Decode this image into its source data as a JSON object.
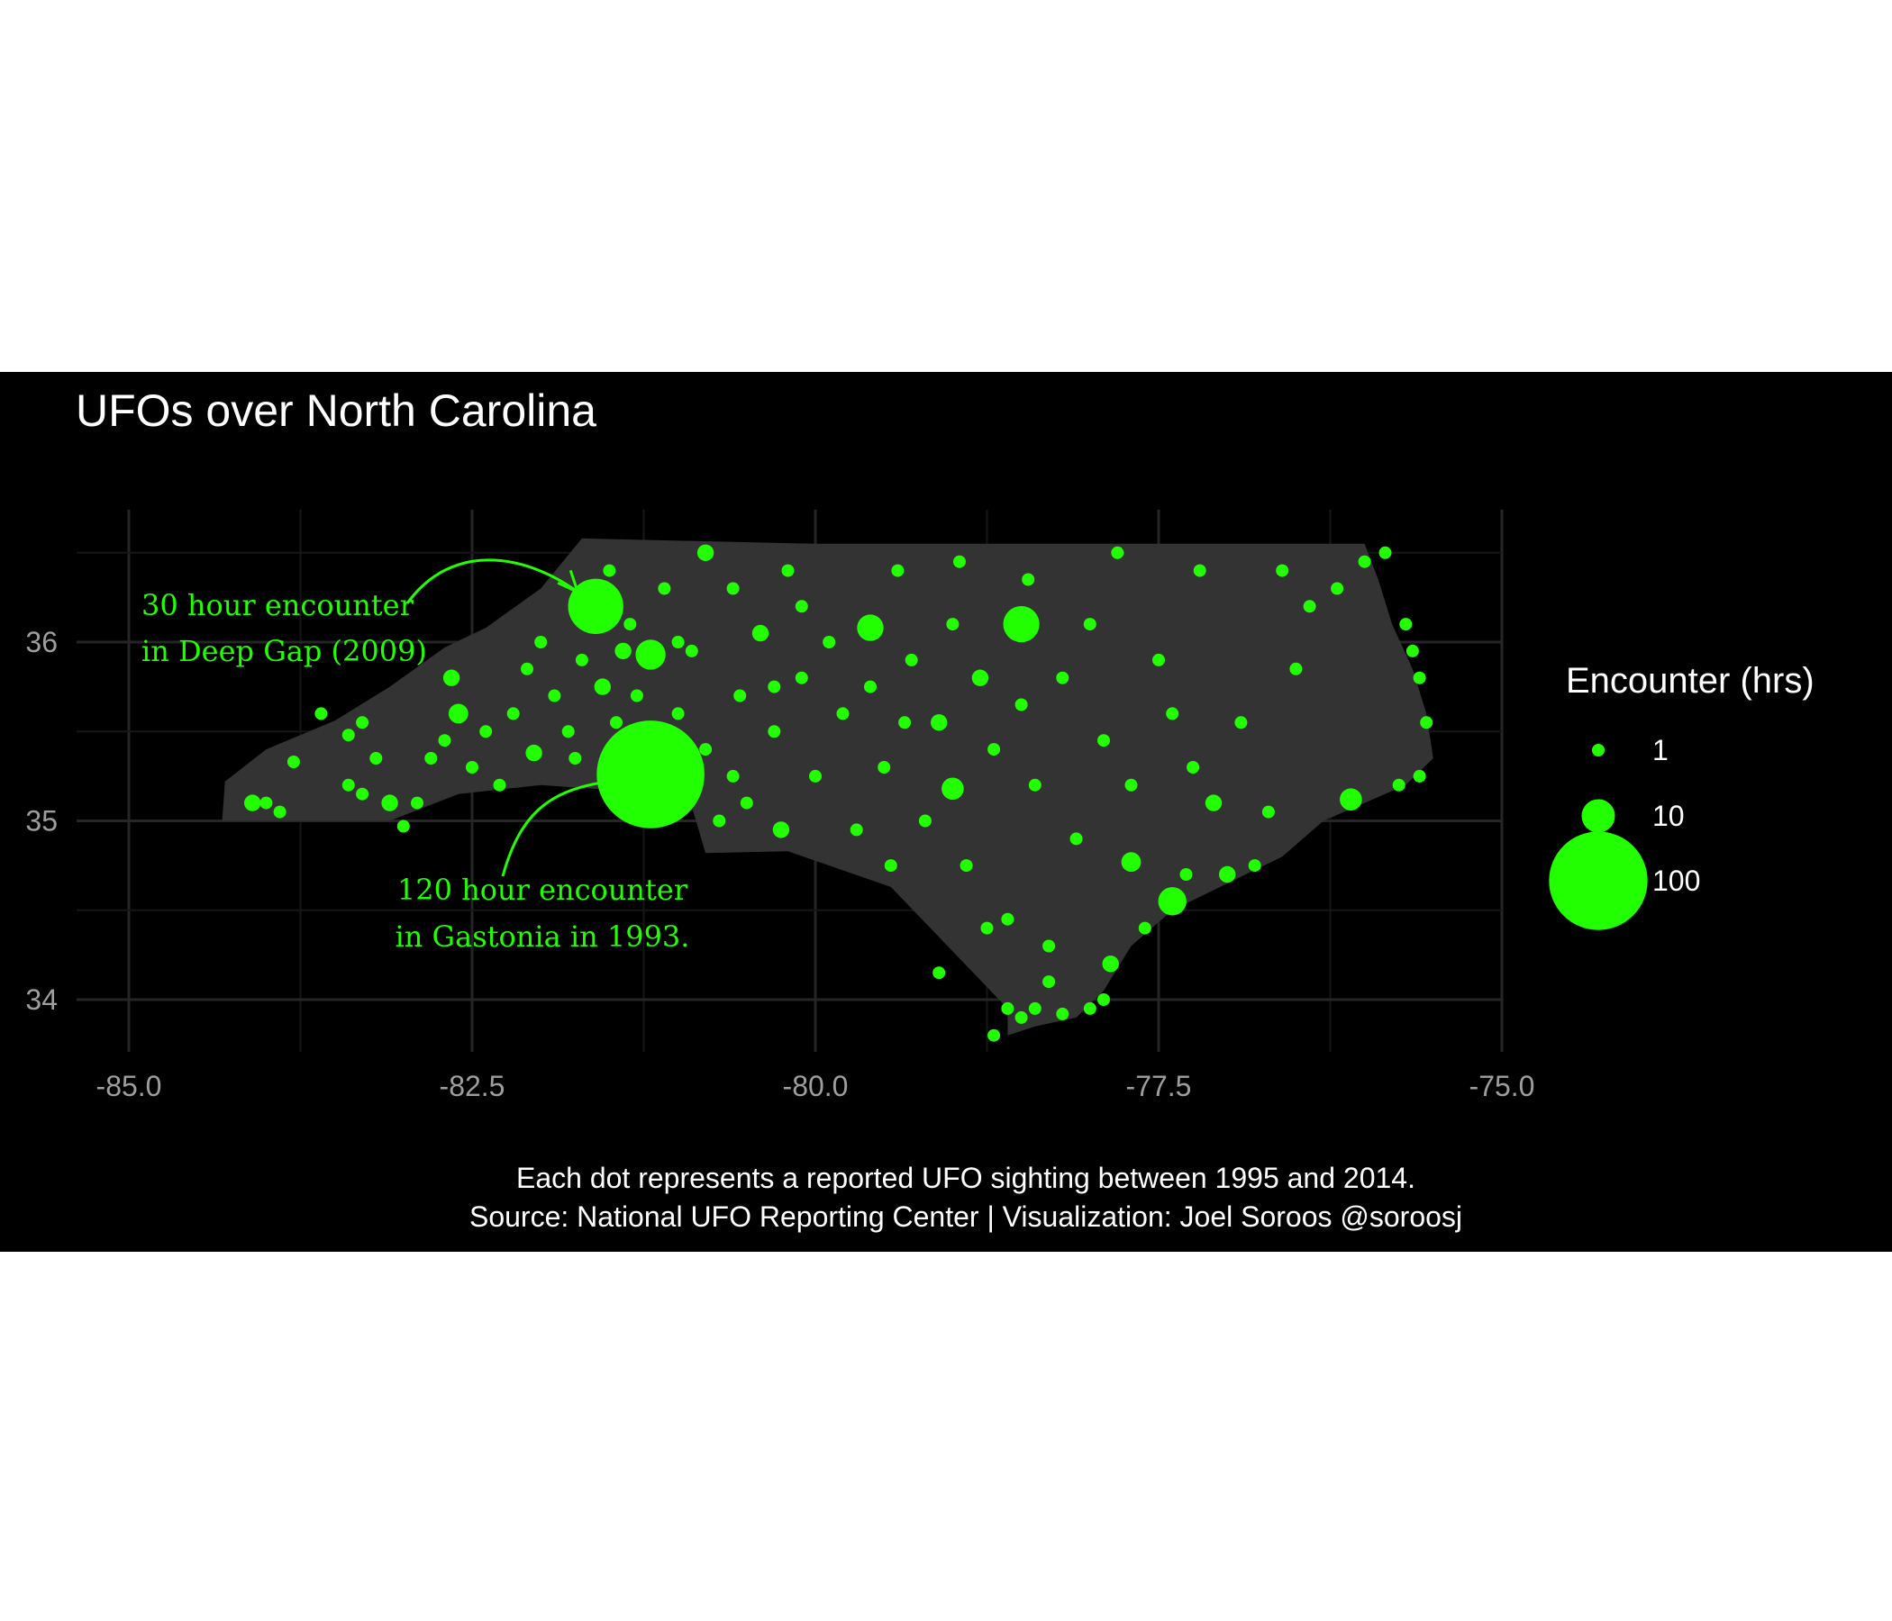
{
  "chart_data": {
    "type": "scatter",
    "title": "UFOs over North Carolina",
    "xlabel": "",
    "ylabel": "",
    "xlim": [
      -85.3,
      -74.5
    ],
    "ylim": [
      33.7,
      36.7
    ],
    "x_ticks": [
      "-85.0",
      "-82.5",
      "-80.0",
      "-77.5",
      "-75.0"
    ],
    "y_ticks": [
      "34",
      "35",
      "36"
    ],
    "grid": true,
    "background": "#000000",
    "state_fill": "#333333",
    "point_color": "#22ff00",
    "size_legend": {
      "title": "Encounter (hrs)",
      "placement": "right",
      "entries": [
        {
          "label": "1",
          "value": 1
        },
        {
          "label": "10",
          "value": 10
        },
        {
          "label": "100",
          "value": 100
        }
      ]
    },
    "annotations": [
      {
        "lines": [
          "30 hour encounter",
          "in Deep Gap (2009)"
        ],
        "target": {
          "lon": -81.6,
          "lat": 36.2
        }
      },
      {
        "lines": [
          "120 hour encounter",
          "in Gastonia in 1993."
        ],
        "target": {
          "lon": -81.2,
          "lat": 35.26
        }
      }
    ],
    "caption": [
      "Each dot represents a reported UFO sighting between 1995 and 2014.",
      "Source: National UFO Reporting Center  | Visualization: Joel Soroos @soroosj"
    ],
    "points": [
      {
        "lon": -81.2,
        "lat": 35.26,
        "hrs": 120
      },
      {
        "lon": -81.6,
        "lat": 36.2,
        "hrs": 30
      },
      {
        "lon": -78.5,
        "lat": 36.1,
        "hrs": 12
      },
      {
        "lon": -81.2,
        "lat": 35.93,
        "hrs": 8
      },
      {
        "lon": -79.6,
        "lat": 36.08,
        "hrs": 6
      },
      {
        "lon": -77.4,
        "lat": 34.55,
        "hrs": 7
      },
      {
        "lon": -80.9,
        "lat": 35.26,
        "hrs": 5
      },
      {
        "lon": -76.1,
        "lat": 35.12,
        "hrs": 4
      },
      {
        "lon": -82.6,
        "lat": 35.6,
        "hrs": 3
      },
      {
        "lon": -81.4,
        "lat": 35.95,
        "hrs": 2
      },
      {
        "lon": -79.0,
        "lat": 35.18,
        "hrs": 4
      },
      {
        "lon": -77.7,
        "lat": 34.77,
        "hrs": 3
      },
      {
        "lon": -82.65,
        "lat": 35.8,
        "hrs": 2
      },
      {
        "lon": -80.8,
        "lat": 36.5,
        "hrs": 2
      },
      {
        "lon": -84.0,
        "lat": 35.1,
        "hrs": 1
      },
      {
        "lon": -83.9,
        "lat": 35.05,
        "hrs": 1
      },
      {
        "lon": -84.1,
        "lat": 35.1,
        "hrs": 2
      },
      {
        "lon": -83.8,
        "lat": 35.33,
        "hrs": 1
      },
      {
        "lon": -83.6,
        "lat": 35.6,
        "hrs": 1
      },
      {
        "lon": -83.4,
        "lat": 35.48,
        "hrs": 1
      },
      {
        "lon": -83.3,
        "lat": 35.55,
        "hrs": 1
      },
      {
        "lon": -83.4,
        "lat": 35.2,
        "hrs": 1
      },
      {
        "lon": -83.3,
        "lat": 35.15,
        "hrs": 1
      },
      {
        "lon": -83.2,
        "lat": 35.35,
        "hrs": 1
      },
      {
        "lon": -83.1,
        "lat": 35.1,
        "hrs": 2
      },
      {
        "lon": -83.0,
        "lat": 34.97,
        "hrs": 1
      },
      {
        "lon": -82.9,
        "lat": 35.1,
        "hrs": 1
      },
      {
        "lon": -82.8,
        "lat": 35.35,
        "hrs": 1
      },
      {
        "lon": -82.7,
        "lat": 35.45,
        "hrs": 1
      },
      {
        "lon": -82.5,
        "lat": 35.3,
        "hrs": 1
      },
      {
        "lon": -82.4,
        "lat": 35.5,
        "hrs": 1
      },
      {
        "lon": -82.3,
        "lat": 35.2,
        "hrs": 1
      },
      {
        "lon": -82.2,
        "lat": 35.6,
        "hrs": 1
      },
      {
        "lon": -82.1,
        "lat": 35.85,
        "hrs": 1
      },
      {
        "lon": -82.0,
        "lat": 36.0,
        "hrs": 1
      },
      {
        "lon": -81.9,
        "lat": 35.7,
        "hrs": 1
      },
      {
        "lon": -81.8,
        "lat": 35.5,
        "hrs": 1
      },
      {
        "lon": -81.75,
        "lat": 35.35,
        "hrs": 1
      },
      {
        "lon": -81.7,
        "lat": 35.9,
        "hrs": 1
      },
      {
        "lon": -81.55,
        "lat": 35.75,
        "hrs": 2
      },
      {
        "lon": -81.5,
        "lat": 36.4,
        "hrs": 1
      },
      {
        "lon": -81.45,
        "lat": 35.55,
        "hrs": 1
      },
      {
        "lon": -81.35,
        "lat": 36.1,
        "hrs": 1
      },
      {
        "lon": -81.3,
        "lat": 35.7,
        "hrs": 1
      },
      {
        "lon": -81.1,
        "lat": 36.3,
        "hrs": 1
      },
      {
        "lon": -81.0,
        "lat": 35.6,
        "hrs": 1
      },
      {
        "lon": -80.9,
        "lat": 35.95,
        "hrs": 1
      },
      {
        "lon": -80.8,
        "lat": 35.4,
        "hrs": 1
      },
      {
        "lon": -80.7,
        "lat": 35.0,
        "hrs": 1
      },
      {
        "lon": -80.6,
        "lat": 36.3,
        "hrs": 1
      },
      {
        "lon": -80.55,
        "lat": 35.7,
        "hrs": 1
      },
      {
        "lon": -80.5,
        "lat": 35.1,
        "hrs": 1
      },
      {
        "lon": -80.4,
        "lat": 36.05,
        "hrs": 2
      },
      {
        "lon": -80.3,
        "lat": 35.5,
        "hrs": 1
      },
      {
        "lon": -80.25,
        "lat": 34.95,
        "hrs": 2
      },
      {
        "lon": -80.2,
        "lat": 36.4,
        "hrs": 1
      },
      {
        "lon": -80.1,
        "lat": 35.8,
        "hrs": 1
      },
      {
        "lon": -80.0,
        "lat": 35.25,
        "hrs": 1
      },
      {
        "lon": -79.9,
        "lat": 36.0,
        "hrs": 1
      },
      {
        "lon": -79.8,
        "lat": 35.6,
        "hrs": 1
      },
      {
        "lon": -79.7,
        "lat": 34.95,
        "hrs": 1
      },
      {
        "lon": -79.6,
        "lat": 35.75,
        "hrs": 1
      },
      {
        "lon": -79.5,
        "lat": 35.3,
        "hrs": 1
      },
      {
        "lon": -79.4,
        "lat": 36.4,
        "hrs": 1
      },
      {
        "lon": -79.3,
        "lat": 35.9,
        "hrs": 1
      },
      {
        "lon": -79.2,
        "lat": 35.0,
        "hrs": 1
      },
      {
        "lon": -79.1,
        "lat": 35.55,
        "hrs": 2
      },
      {
        "lon": -79.0,
        "lat": 36.1,
        "hrs": 1
      },
      {
        "lon": -78.9,
        "lat": 34.75,
        "hrs": 1
      },
      {
        "lon": -78.8,
        "lat": 35.8,
        "hrs": 2
      },
      {
        "lon": -78.7,
        "lat": 35.4,
        "hrs": 1
      },
      {
        "lon": -78.6,
        "lat": 34.45,
        "hrs": 1
      },
      {
        "lon": -78.5,
        "lat": 35.65,
        "hrs": 1
      },
      {
        "lon": -78.45,
        "lat": 36.35,
        "hrs": 1
      },
      {
        "lon": -78.4,
        "lat": 35.2,
        "hrs": 1
      },
      {
        "lon": -78.3,
        "lat": 34.3,
        "hrs": 1
      },
      {
        "lon": -78.2,
        "lat": 35.8,
        "hrs": 1
      },
      {
        "lon": -78.1,
        "lat": 34.9,
        "hrs": 1
      },
      {
        "lon": -78.0,
        "lat": 36.1,
        "hrs": 1
      },
      {
        "lon": -77.9,
        "lat": 35.45,
        "hrs": 1
      },
      {
        "lon": -77.85,
        "lat": 34.2,
        "hrs": 2
      },
      {
        "lon": -77.8,
        "lat": 36.5,
        "hrs": 1
      },
      {
        "lon": -77.7,
        "lat": 35.2,
        "hrs": 1
      },
      {
        "lon": -77.6,
        "lat": 34.4,
        "hrs": 1
      },
      {
        "lon": -77.5,
        "lat": 35.9,
        "hrs": 1
      },
      {
        "lon": -77.4,
        "lat": 35.6,
        "hrs": 1
      },
      {
        "lon": -77.3,
        "lat": 34.7,
        "hrs": 1
      },
      {
        "lon": -77.2,
        "lat": 36.4,
        "hrs": 1
      },
      {
        "lon": -77.1,
        "lat": 35.1,
        "hrs": 2
      },
      {
        "lon": -77.0,
        "lat": 34.7,
        "hrs": 2
      },
      {
        "lon": -76.9,
        "lat": 35.55,
        "hrs": 1
      },
      {
        "lon": -76.8,
        "lat": 34.75,
        "hrs": 1
      },
      {
        "lon": -76.7,
        "lat": 35.05,
        "hrs": 1
      },
      {
        "lon": -76.6,
        "lat": 36.4,
        "hrs": 1
      },
      {
        "lon": -76.5,
        "lat": 35.85,
        "hrs": 1
      },
      {
        "lon": -76.4,
        "lat": 36.2,
        "hrs": 1
      },
      {
        "lon": -76.2,
        "lat": 36.3,
        "hrs": 1
      },
      {
        "lon": -76.0,
        "lat": 36.45,
        "hrs": 1
      },
      {
        "lon": -75.85,
        "lat": 36.5,
        "hrs": 1
      },
      {
        "lon": -75.7,
        "lat": 36.1,
        "hrs": 1
      },
      {
        "lon": -75.65,
        "lat": 35.95,
        "hrs": 1
      },
      {
        "lon": -75.6,
        "lat": 35.8,
        "hrs": 1
      },
      {
        "lon": -75.55,
        "lat": 35.55,
        "hrs": 1
      },
      {
        "lon": -75.6,
        "lat": 35.25,
        "hrs": 1
      },
      {
        "lon": -75.75,
        "lat": 35.2,
        "hrs": 1
      },
      {
        "lon": -78.6,
        "lat": 33.95,
        "hrs": 1
      },
      {
        "lon": -78.5,
        "lat": 33.9,
        "hrs": 1
      },
      {
        "lon": -78.4,
        "lat": 33.95,
        "hrs": 1
      },
      {
        "lon": -78.2,
        "lat": 33.92,
        "hrs": 1
      },
      {
        "lon": -78.0,
        "lat": 33.95,
        "hrs": 1
      },
      {
        "lon": -77.9,
        "lat": 34.0,
        "hrs": 1
      },
      {
        "lon": -78.7,
        "lat": 33.8,
        "hrs": 1
      },
      {
        "lon": -78.3,
        "lat": 34.1,
        "hrs": 1
      },
      {
        "lon": -79.1,
        "lat": 34.15,
        "hrs": 1
      },
      {
        "lon": -78.75,
        "lat": 34.4,
        "hrs": 1
      },
      {
        "lon": -80.3,
        "lat": 35.75,
        "hrs": 1
      },
      {
        "lon": -80.6,
        "lat": 35.25,
        "hrs": 1
      },
      {
        "lon": -81.0,
        "lat": 35.05,
        "hrs": 1
      },
      {
        "lon": -79.35,
        "lat": 35.55,
        "hrs": 1
      },
      {
        "lon": -78.95,
        "lat": 36.45,
        "hrs": 1
      },
      {
        "lon": -80.1,
        "lat": 36.2,
        "hrs": 1
      },
      {
        "lon": -82.05,
        "lat": 35.38,
        "hrs": 2
      },
      {
        "lon": -81.0,
        "lat": 36.0,
        "hrs": 1
      },
      {
        "lon": -79.45,
        "lat": 34.75,
        "hrs": 1
      },
      {
        "lon": -77.25,
        "lat": 35.3,
        "hrs": 1
      }
    ]
  }
}
